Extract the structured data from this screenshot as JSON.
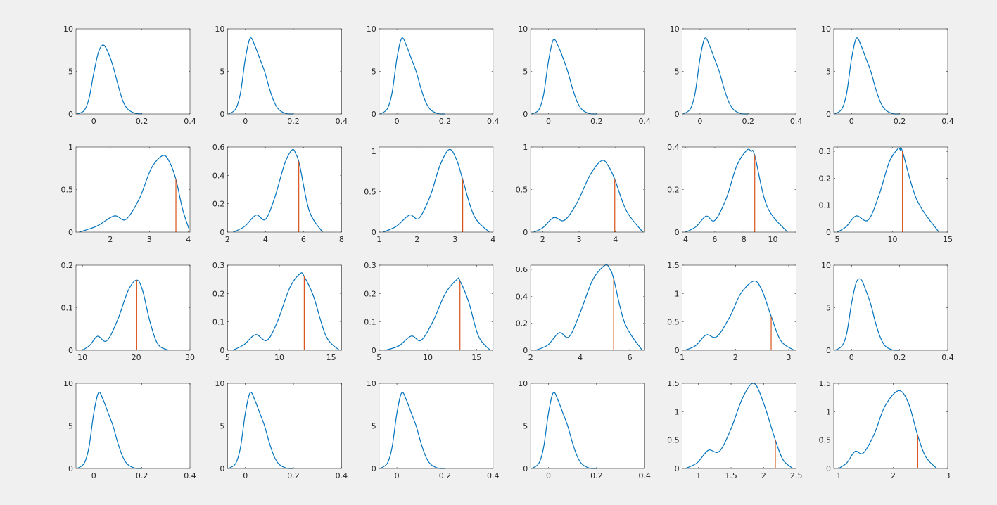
{
  "chart_data": [
    {
      "type": "line",
      "x": [
        -0.07,
        -0.04,
        -0.02,
        0,
        0.02,
        0.04,
        0.06,
        0.08,
        0.1,
        0.12,
        0.14,
        0.17,
        0.2
      ],
      "values": [
        0,
        0.4,
        1.8,
        4.8,
        7.3,
        8.1,
        7.2,
        5.6,
        3.5,
        1.6,
        0.6,
        0.1,
        0
      ],
      "color": "#0072bd",
      "xlim": [
        -0.074,
        0.4
      ],
      "xticks": [
        0,
        0.2,
        0.4
      ],
      "ylim": [
        0,
        10
      ],
      "yticks": [
        0,
        5,
        10
      ]
    },
    {
      "type": "line",
      "x": [
        -0.07,
        -0.04,
        -0.02,
        0,
        0.02,
        0.04,
        0.06,
        0.08,
        0.1,
        0.12,
        0.14,
        0.17,
        0.2
      ],
      "values": [
        0,
        0.6,
        2.5,
        6.5,
        8.9,
        8,
        6.5,
        5,
        3,
        1.4,
        0.5,
        0.05,
        0
      ],
      "color": "#0072bd",
      "xlim": [
        -0.074,
        0.4
      ],
      "xticks": [
        0,
        0.2,
        0.4
      ],
      "ylim": [
        0,
        10
      ],
      "yticks": [
        0,
        5,
        10
      ]
    },
    {
      "type": "line",
      "x": [
        -0.07,
        -0.04,
        -0.02,
        0,
        0.02,
        0.04,
        0.06,
        0.08,
        0.1,
        0.12,
        0.14,
        0.17,
        0.2
      ],
      "values": [
        0,
        0.6,
        2.5,
        6.5,
        8.9,
        8,
        6.5,
        5,
        3,
        1.4,
        0.5,
        0.05,
        0
      ],
      "color": "#0072bd",
      "xlim": [
        -0.074,
        0.4
      ],
      "xticks": [
        0,
        0.2,
        0.4
      ],
      "ylim": [
        0,
        10
      ],
      "yticks": [
        0,
        5,
        10
      ]
    },
    {
      "type": "line",
      "x": [
        -0.07,
        -0.04,
        -0.02,
        0,
        0.02,
        0.04,
        0.06,
        0.08,
        0.1,
        0.12,
        0.14,
        0.17,
        0.2
      ],
      "values": [
        0,
        0.5,
        2.3,
        6.2,
        8.7,
        8,
        6.6,
        5,
        3,
        1.4,
        0.5,
        0.05,
        0
      ],
      "color": "#0072bd",
      "xlim": [
        -0.074,
        0.4
      ],
      "xticks": [
        0,
        0.2,
        0.4
      ],
      "ylim": [
        0,
        10
      ],
      "yticks": [
        0,
        5,
        10
      ]
    },
    {
      "type": "line",
      "x": [
        -0.07,
        -0.04,
        -0.02,
        0,
        0.02,
        0.04,
        0.06,
        0.08,
        0.1,
        0.12,
        0.14,
        0.17,
        0.2
      ],
      "values": [
        0,
        0.6,
        2.5,
        6.5,
        8.9,
        8,
        6.5,
        5,
        3,
        1.4,
        0.5,
        0.05,
        0
      ],
      "color": "#0072bd",
      "xlim": [
        -0.074,
        0.4
      ],
      "xticks": [
        0,
        0.2,
        0.4
      ],
      "ylim": [
        0,
        10
      ],
      "yticks": [
        0,
        5,
        10
      ]
    },
    {
      "type": "line",
      "x": [
        -0.07,
        -0.04,
        -0.02,
        0,
        0.02,
        0.04,
        0.06,
        0.08,
        0.1,
        0.12,
        0.14,
        0.17,
        0.2
      ],
      "values": [
        0,
        0.6,
        2.5,
        6.5,
        8.9,
        8,
        6.5,
        5,
        3,
        1.4,
        0.5,
        0.05,
        0
      ],
      "color": "#0072bd",
      "xlim": [
        -0.074,
        0.4
      ],
      "xticks": [
        0,
        0.2,
        0.4
      ],
      "ylim": [
        0,
        10
      ],
      "yticks": [
        0,
        5,
        10
      ]
    },
    {
      "type": "line",
      "x": [
        1.2,
        1.65,
        2.1,
        2.4,
        2.75,
        3.05,
        3.35,
        3.52,
        3.68,
        3.85,
        4.02
      ],
      "values": [
        0,
        0.07,
        0.19,
        0.15,
        0.4,
        0.75,
        0.9,
        0.82,
        0.62,
        0.27,
        0.03
      ],
      "color": "#0072bd",
      "marker_x": 3.68,
      "marker_value": 0.62,
      "marker_color": "#d95319",
      "xlim": [
        1.12,
        4.04
      ],
      "xticks": [
        2,
        3,
        4
      ],
      "ylim": [
        0,
        1
      ],
      "yticks": [
        0,
        0.5,
        1
      ]
    },
    {
      "type": "line",
      "x": [
        2.3,
        2.9,
        3.5,
        4.0,
        4.5,
        5.0,
        5.4,
        5.6,
        5.8,
        6.3,
        7.0
      ],
      "values": [
        0,
        0.04,
        0.12,
        0.09,
        0.25,
        0.48,
        0.58,
        0.55,
        0.47,
        0.15,
        0
      ],
      "color": "#0072bd",
      "marker_x": 5.75,
      "marker_value": 0.5,
      "marker_color": "#d95319",
      "xlim": [
        2,
        8
      ],
      "xticks": [
        2,
        4,
        6,
        8
      ],
      "ylim": [
        0,
        0.6
      ],
      "yticks": [
        0,
        0.2,
        0.4,
        0.6
      ]
    },
    {
      "type": "line",
      "x": [
        1.1,
        1.45,
        1.8,
        2.05,
        2.35,
        2.6,
        2.85,
        3.05,
        3.2,
        3.5,
        3.9
      ],
      "values": [
        0,
        0.07,
        0.21,
        0.17,
        0.45,
        0.82,
        1.02,
        0.88,
        0.65,
        0.2,
        0
      ],
      "color": "#0072bd",
      "marker_x": 3.2,
      "marker_value": 0.65,
      "marker_color": "#d95319",
      "xlim": [
        1,
        4
      ],
      "xticks": [
        1,
        2,
        3,
        4
      ],
      "ylim": [
        0,
        1.05
      ],
      "yticks": [
        0,
        0.5,
        1
      ]
    },
    {
      "type": "line",
      "x": [
        1.75,
        2.0,
        2.3,
        2.6,
        2.95,
        3.3,
        3.62,
        3.8,
        3.98,
        4.3,
        4.75
      ],
      "values": [
        0,
        0.05,
        0.17,
        0.14,
        0.35,
        0.67,
        0.84,
        0.78,
        0.62,
        0.25,
        0
      ],
      "color": "#0072bd",
      "marker_x": 3.98,
      "marker_value": 0.62,
      "marker_color": "#d95319",
      "xlim": [
        1.67,
        4.8
      ],
      "xticks": [
        2,
        3,
        4
      ],
      "ylim": [
        0,
        1
      ],
      "yticks": [
        0,
        0.5,
        1
      ]
    },
    {
      "type": "line",
      "x": [
        4.0,
        4.7,
        5.4,
        6.0,
        6.8,
        7.5,
        8.2,
        8.5,
        8.75,
        9.6,
        11.0
      ],
      "values": [
        0,
        0.025,
        0.075,
        0.055,
        0.16,
        0.31,
        0.385,
        0.38,
        0.36,
        0.12,
        0
      ],
      "color": "#0072bd",
      "marker_x": 8.75,
      "marker_value": 0.36,
      "marker_color": "#d95319",
      "xlim": [
        3.76,
        11.6
      ],
      "xticks": [
        4,
        6,
        8,
        10
      ],
      "ylim": [
        0,
        0.4
      ],
      "yticks": [
        0,
        0.2,
        0.4
      ]
    },
    {
      "type": "line",
      "x": [
        5.0,
        5.8,
        6.7,
        7.8,
        8.8,
        9.7,
        10.5,
        10.7,
        10.9,
        12.2,
        14.2
      ],
      "values": [
        0,
        0.02,
        0.06,
        0.045,
        0.14,
        0.26,
        0.31,
        0.305,
        0.3,
        0.12,
        0
      ],
      "color": "#0072bd",
      "marker_x": 10.9,
      "marker_value": 0.3,
      "marker_color": "#d95319",
      "xlim": [
        4.68,
        15
      ],
      "xticks": [
        5,
        10,
        15
      ],
      "ylim": [
        0,
        0.316
      ],
      "yticks": [
        0,
        0.1,
        0.2,
        0.3
      ]
    },
    {
      "type": "line",
      "x": [
        10,
        11.4,
        12.8,
        14.5,
        16.5,
        18.5,
        20.1,
        21.2,
        22.5,
        24,
        26
      ],
      "values": [
        0,
        0.012,
        0.033,
        0.022,
        0.07,
        0.14,
        0.165,
        0.14,
        0.07,
        0.015,
        0
      ],
      "color": "#0072bd",
      "marker_x": 20.1,
      "marker_value": 0.165,
      "marker_color": "#d95319",
      "xlim": [
        8.8,
        30
      ],
      "xticks": [
        10,
        20,
        30
      ],
      "ylim": [
        0,
        0.2
      ],
      "yticks": [
        0,
        0.1,
        0.2
      ]
    },
    {
      "type": "line",
      "x": [
        5.5,
        6.6,
        7.7,
        8.8,
        9.8,
        11,
        12,
        12.4,
        13.3,
        14.5,
        15.8
      ],
      "values": [
        0,
        0.02,
        0.055,
        0.035,
        0.1,
        0.22,
        0.27,
        0.26,
        0.19,
        0.05,
        0
      ],
      "color": "#0072bd",
      "marker_x": 12.4,
      "marker_value": 0.26,
      "marker_color": "#d95319",
      "xlim": [
        5,
        16
      ],
      "xticks": [
        5,
        10,
        15
      ],
      "ylim": [
        0,
        0.3
      ],
      "yticks": [
        0,
        0.1,
        0.2,
        0.3
      ]
    },
    {
      "type": "line",
      "x": [
        5.6,
        7.0,
        8.3,
        9.3,
        10.5,
        11.8,
        13,
        13.3,
        14.2,
        15.2,
        16.4
      ],
      "values": [
        0,
        0.015,
        0.05,
        0.035,
        0.1,
        0.2,
        0.25,
        0.245,
        0.17,
        0.05,
        0
      ],
      "color": "#0072bd",
      "marker_x": 13.3,
      "marker_value": 0.245,
      "marker_color": "#d95319",
      "xlim": [
        5,
        16.7
      ],
      "xticks": [
        5,
        10,
        15
      ],
      "ylim": [
        0,
        0.3
      ],
      "yticks": [
        0,
        0.1,
        0.2,
        0.3
      ]
    },
    {
      "type": "line",
      "x": [
        2.2,
        2.7,
        3.15,
        3.55,
        4.0,
        4.5,
        5.0,
        5.2,
        5.35,
        5.8,
        6.5
      ],
      "values": [
        0,
        0.04,
        0.13,
        0.1,
        0.28,
        0.52,
        0.63,
        0.6,
        0.53,
        0.2,
        0
      ],
      "color": "#0072bd",
      "marker_x": 5.35,
      "marker_value": 0.53,
      "marker_color": "#d95319",
      "xlim": [
        2,
        6.6
      ],
      "xticks": [
        2,
        4,
        6
      ],
      "ylim": [
        0,
        0.631
      ],
      "yticks": [
        0,
        0.2,
        0.4,
        0.6
      ]
    },
    {
      "type": "line",
      "x": [
        1.05,
        1.25,
        1.45,
        1.65,
        1.9,
        2.1,
        2.35,
        2.5,
        2.67,
        2.85,
        3.1
      ],
      "values": [
        0,
        0.08,
        0.27,
        0.24,
        0.6,
        1.0,
        1.22,
        1.05,
        0.6,
        0.17,
        0
      ],
      "color": "#0072bd",
      "marker_x": 2.67,
      "marker_value": 0.6,
      "marker_color": "#d95319",
      "xlim": [
        1,
        3.14
      ],
      "xticks": [
        1,
        2,
        3
      ],
      "ylim": [
        0,
        1.5
      ],
      "yticks": [
        0,
        0.5,
        1,
        1.5
      ]
    },
    {
      "type": "line",
      "x": [
        -0.07,
        -0.04,
        -0.02,
        0,
        0.02,
        0.04,
        0.06,
        0.08,
        0.1,
        0.12,
        0.14,
        0.17,
        0.2
      ],
      "values": [
        0,
        0.5,
        2,
        5.5,
        8,
        8.3,
        7,
        5.4,
        3.2,
        1.5,
        0.5,
        0.05,
        0
      ],
      "color": "#0072bd",
      "xlim": [
        -0.074,
        0.4
      ],
      "xticks": [
        0,
        0.2,
        0.4
      ],
      "ylim": [
        0,
        10
      ],
      "yticks": [
        0,
        5,
        10
      ]
    },
    {
      "type": "line",
      "x": [
        -0.07,
        -0.04,
        -0.02,
        0,
        0.02,
        0.04,
        0.06,
        0.08,
        0.1,
        0.12,
        0.14,
        0.17,
        0.2
      ],
      "values": [
        0,
        0.6,
        2.5,
        6.5,
        8.9,
        8,
        6.5,
        5,
        3,
        1.4,
        0.5,
        0.05,
        0
      ],
      "color": "#0072bd",
      "xlim": [
        -0.074,
        0.4
      ],
      "xticks": [
        0,
        0.2,
        0.4
      ],
      "ylim": [
        0,
        10
      ],
      "yticks": [
        0,
        5,
        10
      ]
    },
    {
      "type": "line",
      "x": [
        -0.07,
        -0.04,
        -0.02,
        0,
        0.02,
        0.04,
        0.06,
        0.08,
        0.1,
        0.12,
        0.14,
        0.17,
        0.2
      ],
      "values": [
        0,
        0.6,
        2.5,
        6.5,
        8.9,
        8,
        6.5,
        5,
        3,
        1.4,
        0.5,
        0.05,
        0
      ],
      "color": "#0072bd",
      "xlim": [
        -0.074,
        0.4
      ],
      "xticks": [
        0,
        0.2,
        0.4
      ],
      "ylim": [
        0,
        10
      ],
      "yticks": [
        0,
        5,
        10
      ]
    },
    {
      "type": "line",
      "x": [
        -0.07,
        -0.04,
        -0.02,
        0,
        0.02,
        0.04,
        0.06,
        0.08,
        0.1,
        0.12,
        0.14,
        0.17,
        0.2
      ],
      "values": [
        0,
        0.6,
        2.5,
        6.5,
        8.9,
        8,
        6.5,
        5,
        3,
        1.4,
        0.5,
        0.05,
        0
      ],
      "color": "#0072bd",
      "xlim": [
        -0.074,
        0.4
      ],
      "xticks": [
        0,
        0.2,
        0.4
      ],
      "ylim": [
        0,
        10
      ],
      "yticks": [
        0,
        5,
        10
      ]
    },
    {
      "type": "line",
      "x": [
        -0.07,
        -0.04,
        -0.02,
        0,
        0.02,
        0.04,
        0.06,
        0.08,
        0.1,
        0.12,
        0.14,
        0.17,
        0.2
      ],
      "values": [
        0,
        0.6,
        2.5,
        6.5,
        8.9,
        8,
        6.5,
        5,
        3,
        1.4,
        0.5,
        0.05,
        0
      ],
      "color": "#0072bd",
      "xlim": [
        -0.074,
        0.4
      ],
      "xticks": [
        0,
        0.2,
        0.4
      ],
      "ylim": [
        0,
        10
      ],
      "yticks": [
        0,
        5,
        10
      ]
    },
    {
      "type": "line",
      "x": [
        0.8,
        0.98,
        1.15,
        1.32,
        1.5,
        1.68,
        1.85,
        2.0,
        2.18,
        2.3,
        2.45
      ],
      "values": [
        0,
        0.1,
        0.32,
        0.3,
        0.7,
        1.25,
        1.5,
        1.15,
        0.5,
        0.15,
        0
      ],
      "color": "#0072bd",
      "marker_x": 2.18,
      "marker_value": 0.5,
      "marker_color": "#d95319",
      "xlim": [
        0.75,
        2.5
      ],
      "xticks": [
        1,
        1.5,
        2,
        2.5
      ],
      "ylim": [
        0,
        1.5
      ],
      "yticks": [
        0,
        0.5,
        1,
        1.5
      ]
    },
    {
      "type": "line",
      "x": [
        1.0,
        1.15,
        1.3,
        1.45,
        1.65,
        1.85,
        2.1,
        2.28,
        2.45,
        2.6,
        2.8
      ],
      "values": [
        0,
        0.1,
        0.3,
        0.27,
        0.6,
        1.1,
        1.37,
        1.15,
        0.58,
        0.2,
        0
      ],
      "color": "#0072bd",
      "marker_x": 2.45,
      "marker_value": 0.58,
      "marker_color": "#d95319",
      "xlim": [
        0.91,
        3
      ],
      "xticks": [
        1,
        2,
        3
      ],
      "ylim": [
        0,
        1.5
      ],
      "yticks": [
        0,
        0.5,
        1,
        1.5
      ]
    }
  ]
}
